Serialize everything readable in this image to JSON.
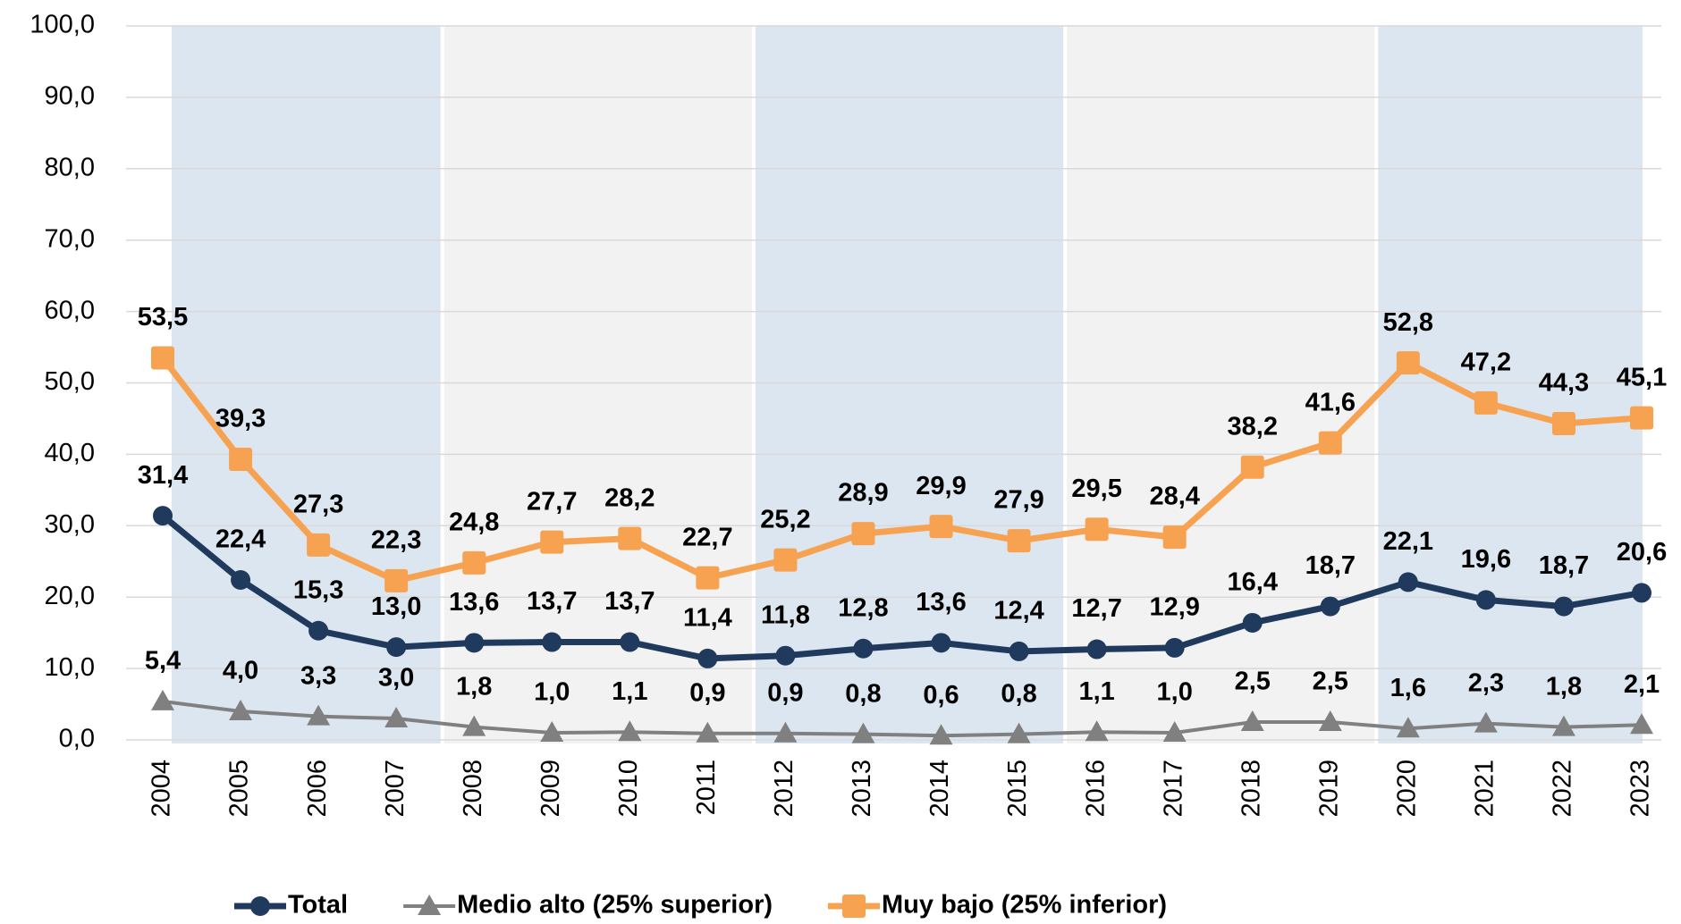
{
  "chart_data": {
    "type": "line",
    "categories": [
      "2004",
      "2005",
      "2006",
      "2007",
      "2008",
      "2009",
      "2010",
      "2011",
      "2012",
      "2013",
      "2014",
      "2015",
      "2016",
      "2017",
      "2018",
      "2019",
      "2020",
      "2021",
      "2022",
      "2023"
    ],
    "series": [
      {
        "name": "Total",
        "color": "#203a5e",
        "marker": "circle",
        "values": [
          31.4,
          22.4,
          15.3,
          13.0,
          13.6,
          13.7,
          13.7,
          11.4,
          11.8,
          12.8,
          13.6,
          12.4,
          12.7,
          12.9,
          16.4,
          18.7,
          22.1,
          19.6,
          18.7,
          20.6
        ],
        "value_labels": [
          "31,4",
          "22,4",
          "15,3",
          "13,0",
          "13,6",
          "13,7",
          "13,7",
          "11,4",
          "11,8",
          "12,8",
          "13,6",
          "12,4",
          "12,7",
          "12,9",
          "16,4",
          "18,7",
          "22,1",
          "19,6",
          "18,7",
          "20,6"
        ]
      },
      {
        "name": "Medio alto (25% superior)",
        "color": "#808080",
        "marker": "triangle",
        "values": [
          5.4,
          4.0,
          3.3,
          3.0,
          1.8,
          1.0,
          1.1,
          0.9,
          0.9,
          0.8,
          0.6,
          0.8,
          1.1,
          1.0,
          2.5,
          2.5,
          1.6,
          2.3,
          1.8,
          2.1
        ],
        "value_labels": [
          "5,4",
          "4,0",
          "3,3",
          "3,0",
          "1,8",
          "1,0",
          "1,1",
          "0,9",
          "0,9",
          "0,8",
          "0,6",
          "0,8",
          "1,1",
          "1,0",
          "2,5",
          "2,5",
          "1,6",
          "2,3",
          "1,8",
          "2,1"
        ]
      },
      {
        "name": "Muy bajo (25% inferior)",
        "color": "#f6a251",
        "marker": "square",
        "values": [
          53.5,
          39.3,
          27.3,
          22.3,
          24.8,
          27.7,
          28.2,
          22.7,
          25.2,
          28.9,
          29.9,
          27.9,
          29.5,
          28.4,
          38.2,
          41.6,
          52.8,
          47.2,
          44.3,
          45.1
        ],
        "value_labels": [
          "53,5",
          "39,3",
          "27,3",
          "22,3",
          "24,8",
          "27,7",
          "28,2",
          "22,7",
          "25,2",
          "28,9",
          "29,9",
          "27,9",
          "29,5",
          "28,4",
          "38,2",
          "41,6",
          "52,8",
          "47,2",
          "44,3",
          "45,1"
        ]
      }
    ],
    "ylim": [
      0,
      100
    ],
    "yticks": [
      {
        "value": 0,
        "label": "0,0"
      },
      {
        "value": 10,
        "label": "10,0"
      },
      {
        "value": 20,
        "label": "20,0"
      },
      {
        "value": 30,
        "label": "30,0"
      },
      {
        "value": 40,
        "label": "40,0"
      },
      {
        "value": 50,
        "label": "50,0"
      },
      {
        "value": 60,
        "label": "60,0"
      },
      {
        "value": 70,
        "label": "70,0"
      },
      {
        "value": 80,
        "label": "80,0"
      },
      {
        "value": 90,
        "label": "90,0"
      },
      {
        "value": 100,
        "label": "100,0"
      }
    ],
    "grid": true,
    "legend": "bottom"
  }
}
